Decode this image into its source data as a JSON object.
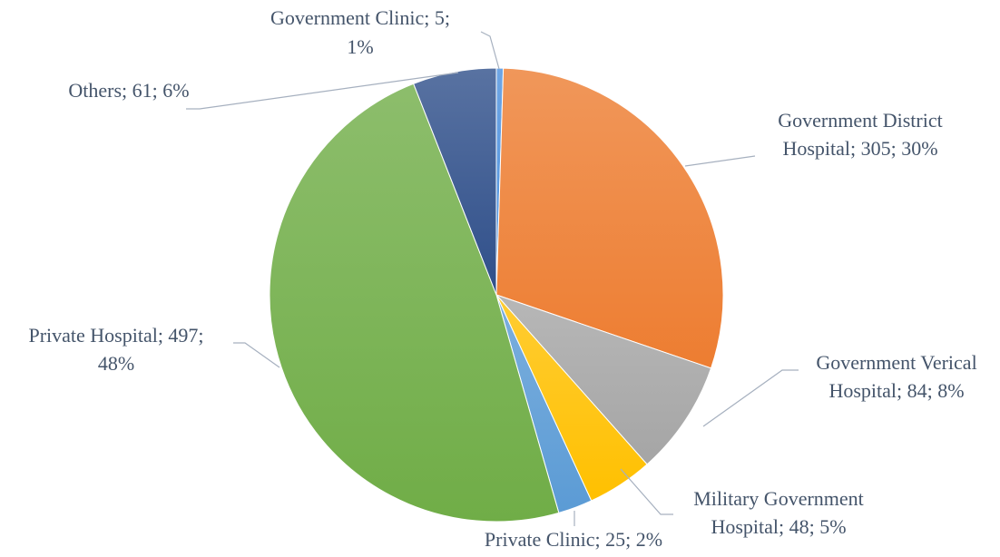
{
  "chart_data": {
    "type": "pie",
    "categories": [
      "Government Clinic",
      "Government District Hospital",
      "Government Verical Hospital",
      "Military Government Hospital",
      "Private Clinic",
      "Private Hospital",
      "Others"
    ],
    "values": [
      5,
      305,
      84,
      48,
      25,
      497,
      61
    ],
    "value_labels": [
      [
        "Government Clinic; 5;",
        "1%"
      ],
      [
        "Government District",
        "Hospital; 305; 30%"
      ],
      [
        "Government Verical",
        "Hospital; 84; 8%"
      ],
      [
        "Military Government",
        "Hospital; 48; 5%"
      ],
      [
        "Private Clinic; 25; 2%"
      ],
      [
        "Private Hospital; 497;",
        "48%"
      ],
      [
        "Others; 61; 6%"
      ]
    ],
    "colors": [
      "#4a8fdd",
      "#ed7d31",
      "#a5a5a5",
      "#ffc000",
      "#5b9bd5",
      "#70ad47",
      "#2f4f8a"
    ]
  }
}
